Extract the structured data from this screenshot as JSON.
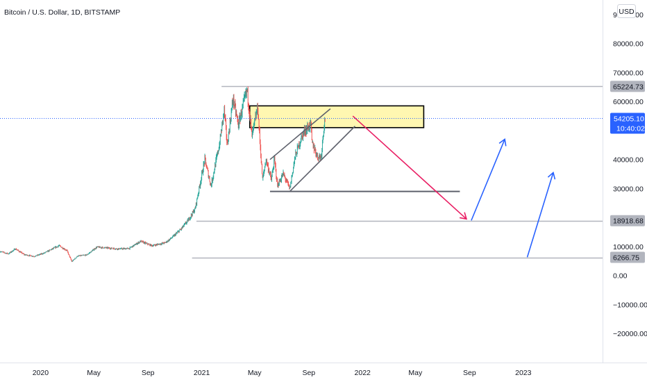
{
  "header": {
    "title": "Bitcoin / U.S. Dollar, 1D, BITSTAMP",
    "currency_button": "USD"
  },
  "colors": {
    "candle_up": "#26a69a",
    "candle_down": "#ef5350",
    "zone_fill": "#fff59d",
    "level_line": "#b2b5be",
    "current_price_line": "#2962ff",
    "price_badge": "#2962ff",
    "level_badge": "#b2b5be",
    "arrow_down": "#e91e63",
    "arrow_up": "#2962ff",
    "channel_line": "#5d606b",
    "support_line": "#5d606b"
  },
  "chart_data": {
    "type": "candlestick",
    "title": "Bitcoin / U.S. Dollar, 1D, BITSTAMP",
    "currency": "USD",
    "ylim": [
      -30000,
      95000
    ],
    "y_ticks": [
      90000,
      80000,
      70000,
      60000,
      50000,
      40000,
      30000,
      20000,
      10000,
      0,
      -10000,
      -20000
    ],
    "y_tick_labels": [
      "90000.00",
      "80000.00",
      "70000.00",
      "60000.00",
      "",
      "40000.00",
      "30000.00",
      "",
      "10000.00",
      "0.00",
      "−10000.00",
      "−20000.00"
    ],
    "x_ticks": [
      "2020",
      "May",
      "Sep",
      "2021",
      "May",
      "Sep",
      "2022",
      "May",
      "Sep",
      "2023"
    ],
    "x_tick_dates": [
      "2020-01-01",
      "2020-05-01",
      "2020-09-01",
      "2021-01-01",
      "2021-05-01",
      "2021-09-01",
      "2022-01-01",
      "2022-05-01",
      "2022-09-01",
      "2023-01-01"
    ],
    "x_range": [
      "2019-10-01",
      "2023-06-30"
    ],
    "grid": false,
    "current_price": {
      "value": 54205.1,
      "label": "54205.10",
      "countdown": "10:40:02"
    },
    "price_path": [
      [
        "2019-10-01",
        8300
      ],
      [
        "2019-10-20",
        7500
      ],
      [
        "2019-11-05",
        9200
      ],
      [
        "2019-11-25",
        7200
      ],
      [
        "2019-12-18",
        6600
      ],
      [
        "2020-01-10",
        7800
      ],
      [
        "2020-02-12",
        10300
      ],
      [
        "2020-03-01",
        8600
      ],
      [
        "2020-03-12",
        4800
      ],
      [
        "2020-03-25",
        6700
      ],
      [
        "2020-04-15",
        7100
      ],
      [
        "2020-05-08",
        9800
      ],
      [
        "2020-06-01",
        9500
      ],
      [
        "2020-06-25",
        9200
      ],
      [
        "2020-07-20",
        9300
      ],
      [
        "2020-08-15",
        11800
      ],
      [
        "2020-09-10",
        10300
      ],
      [
        "2020-10-10",
        11300
      ],
      [
        "2020-10-25",
        13000
      ],
      [
        "2020-11-15",
        16000
      ],
      [
        "2020-12-01",
        19000
      ],
      [
        "2020-12-17",
        23000
      ],
      [
        "2021-01-08",
        40000
      ],
      [
        "2021-01-22",
        31000
      ],
      [
        "2021-02-10",
        45000
      ],
      [
        "2021-02-21",
        57000
      ],
      [
        "2021-02-28",
        45000
      ],
      [
        "2021-03-13",
        61000
      ],
      [
        "2021-03-25",
        52000
      ],
      [
        "2021-04-14",
        64000
      ],
      [
        "2021-04-25",
        48000
      ],
      [
        "2021-05-08",
        58000
      ],
      [
        "2021-05-19",
        33000
      ],
      [
        "2021-05-27",
        40000
      ],
      [
        "2021-06-08",
        33000
      ],
      [
        "2021-06-15",
        40000
      ],
      [
        "2021-06-22",
        31000
      ],
      [
        "2021-07-05",
        35000
      ],
      [
        "2021-07-20",
        30000
      ],
      [
        "2021-08-01",
        41000
      ],
      [
        "2021-08-14",
        47000
      ],
      [
        "2021-08-23",
        50000
      ],
      [
        "2021-09-06",
        52000
      ],
      [
        "2021-09-08",
        46000
      ],
      [
        "2021-09-21",
        41000
      ],
      [
        "2021-09-29",
        41000
      ],
      [
        "2021-10-05",
        51000
      ],
      [
        "2021-10-08",
        54200
      ]
    ],
    "levels": [
      {
        "value": 65224.73,
        "label": "65224.73",
        "from": "2021-02-15"
      },
      {
        "value": 18918.68,
        "label": "18918.68",
        "from": "2020-12-20"
      },
      {
        "value": 6266.75,
        "label": "6266.75",
        "from": "2020-12-10"
      }
    ],
    "drawings": {
      "resistance_zone": {
        "from": "2021-04-20",
        "to": "2022-05-20",
        "low": 51000,
        "high": 58500
      },
      "rising_channel": {
        "lower": [
          [
            "2021-07-20",
            29000
          ],
          [
            "2021-12-15",
            51500
          ]
        ],
        "upper": [
          [
            "2021-06-05",
            40000
          ],
          [
            "2021-10-20",
            57500
          ]
        ]
      },
      "support_line": {
        "from": "2021-06-05",
        "to": "2022-08-10",
        "value": 29000
      },
      "projection_down": {
        "from": [
          "2021-12-10",
          55000
        ],
        "to": [
          "2022-08-25",
          19500
        ]
      },
      "projection_up": [
        {
          "from": [
            "2022-09-05",
            19000
          ],
          "to": [
            "2022-11-20",
            47000
          ]
        },
        {
          "from": [
            "2023-01-10",
            6300
          ],
          "to": [
            "2023-03-10",
            35500
          ]
        }
      ]
    }
  }
}
